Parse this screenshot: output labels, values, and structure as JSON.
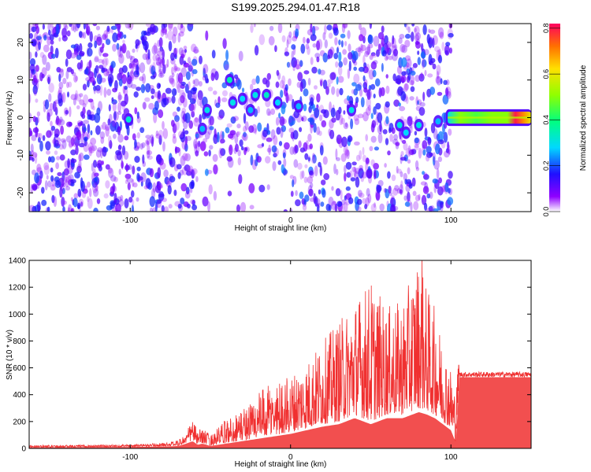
{
  "figure": {
    "title": "S199.2025.294.01.47.R18"
  },
  "colors": {
    "snr_line": "#f03030",
    "axis": "#000000",
    "background": "#ffffff"
  },
  "chart_data": [
    {
      "type": "heatmap",
      "title": "S199.2025.294.01.47.R18",
      "xlabel": "Height of straight line (km)",
      "ylabel": "Frequency (Hz)",
      "xlim": [
        -163,
        150
      ],
      "ylim": [
        -25,
        25
      ],
      "x_ticks": [
        -100,
        0,
        100
      ],
      "x_tick_labels": [
        "-100",
        "0",
        "100"
      ],
      "y_ticks": [
        -20,
        -10,
        0,
        10,
        20
      ],
      "y_tick_labels": [
        "-20",
        "-10",
        "0",
        "10",
        "20"
      ],
      "colorbar": {
        "label": "Normalized spectral amplitude",
        "range": [
          0,
          0.82
        ],
        "ticks": [
          0,
          0.2,
          0.4,
          0.6,
          0.8
        ],
        "tick_labels": [
          "0.0",
          "0.2",
          "0.4",
          "0.6",
          "0.8"
        ]
      },
      "noise_regions": [
        {
          "x_range": [
            -163,
            -60
          ],
          "f_range": [
            -25,
            25
          ],
          "level": 0.12
        },
        {
          "x_range": [
            -60,
            100
          ],
          "f_range": [
            -25,
            25
          ],
          "level": 0.15
        }
      ],
      "hot_spots": [
        {
          "x": -101,
          "f": -0.5,
          "amp": 0.32
        },
        {
          "x": -55,
          "f": -3,
          "amp": 0.26
        },
        {
          "x": -52,
          "f": 2,
          "amp": 0.3
        },
        {
          "x": -38,
          "f": 10,
          "amp": 0.35
        },
        {
          "x": -36,
          "f": 4,
          "amp": 0.3
        },
        {
          "x": -30,
          "f": 5,
          "amp": 0.28
        },
        {
          "x": -25,
          "f": 2,
          "amp": 0.26
        },
        {
          "x": -22,
          "f": 6,
          "amp": 0.3
        },
        {
          "x": -15,
          "f": 6,
          "amp": 0.33
        },
        {
          "x": -8,
          "f": 4,
          "amp": 0.28
        },
        {
          "x": 5,
          "f": 3,
          "amp": 0.26
        },
        {
          "x": 38,
          "f": 2,
          "amp": 0.3
        },
        {
          "x": 68,
          "f": -2,
          "amp": 0.3
        },
        {
          "x": 72,
          "f": -4,
          "amp": 0.28
        },
        {
          "x": 80,
          "f": -2,
          "amp": 0.3
        },
        {
          "x": 92,
          "f": -1,
          "amp": 0.26
        }
      ],
      "signal_band": {
        "x_range": [
          97,
          150
        ],
        "f_center": 0,
        "f_halfwidth": 1.8,
        "x_points": [
          97,
          105,
          115,
          125,
          135,
          140,
          145,
          150
        ],
        "amplitude": [
          0.3,
          0.5,
          0.45,
          0.5,
          0.5,
          0.8,
          0.7,
          0.6
        ]
      }
    },
    {
      "type": "line",
      "xlabel": "Height of straight line (km)",
      "ylabel": "SNR (10 * v/v)",
      "xlim": [
        -163,
        150
      ],
      "ylim": [
        0,
        1400
      ],
      "x_ticks": [
        -100,
        0,
        100
      ],
      "x_tick_labels": [
        "-100",
        "0",
        "100"
      ],
      "y_ticks": [
        0,
        200,
        400,
        600,
        800,
        1000,
        1200,
        1400
      ],
      "y_tick_labels": [
        "0",
        "200",
        "400",
        "600",
        "800",
        "1000",
        "1200",
        "1400"
      ],
      "series": [
        {
          "name": "SNR",
          "envelope_x": [
            -163,
            -140,
            -100,
            -80,
            -70,
            -65,
            -61,
            -58,
            -55,
            -50,
            -40,
            -30,
            -20,
            -10,
            0,
            10,
            20,
            30,
            40,
            50,
            60,
            70,
            80,
            85,
            90,
            95,
            100,
            103,
            105,
            110,
            120,
            135,
            150
          ],
          "envelope_y": [
            25,
            25,
            30,
            40,
            60,
            120,
            240,
            120,
            160,
            100,
            220,
            300,
            420,
            500,
            550,
            650,
            800,
            950,
            1100,
            1270,
            1050,
            1100,
            1430,
            1200,
            1050,
            800,
            600,
            420,
            700,
            560,
            550,
            550,
            550
          ],
          "baseline_y": [
            10,
            10,
            12,
            15,
            20,
            40,
            60,
            30,
            40,
            20,
            40,
            60,
            80,
            100,
            120,
            150,
            180,
            200,
            250,
            200,
            250,
            250,
            300,
            280,
            250,
            200,
            150,
            50,
            480,
            500,
            520,
            530,
            540
          ],
          "peak": {
            "x": 82,
            "y": 1430
          }
        }
      ]
    }
  ]
}
